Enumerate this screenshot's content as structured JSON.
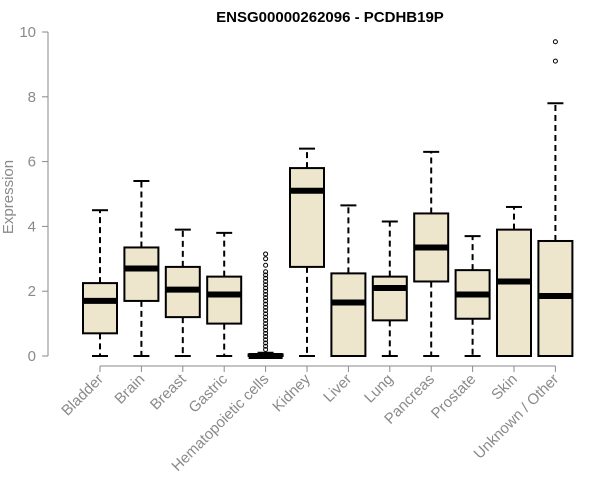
{
  "chart_data": {
    "type": "boxplot",
    "title": "ENSG00000262096 - PCDHB19P",
    "xlabel": "",
    "ylabel": "Expression",
    "ylim": [
      0,
      10
    ],
    "yticks": [
      0,
      2,
      4,
      6,
      8,
      10
    ],
    "categories": [
      "Bladder",
      "Brain",
      "Breast",
      "Gastric",
      "Hematopoietic cells",
      "Kidney",
      "Liver",
      "Lung",
      "Pancreas",
      "Prostate",
      "Skin",
      "Unknown / Other"
    ],
    "boxes": [
      {
        "category": "Bladder",
        "whisker_low": 0,
        "q1": 0.7,
        "median": 1.7,
        "q3": 2.25,
        "whisker_high": 4.5,
        "outliers": []
      },
      {
        "category": "Brain",
        "whisker_low": 0,
        "q1": 1.7,
        "median": 2.7,
        "q3": 3.35,
        "whisker_high": 5.4,
        "outliers": []
      },
      {
        "category": "Breast",
        "whisker_low": 0,
        "q1": 1.2,
        "median": 2.05,
        "q3": 2.75,
        "whisker_high": 3.9,
        "outliers": []
      },
      {
        "category": "Gastric",
        "whisker_low": 0,
        "q1": 1.0,
        "median": 1.9,
        "q3": 2.45,
        "whisker_high": 3.8,
        "outliers": []
      },
      {
        "category": "Hematopoietic cells",
        "whisker_low": 0,
        "q1": 0,
        "median": 0,
        "q3": 0.05,
        "whisker_high": 0.1,
        "outliers": [
          0.2,
          0.3,
          0.4,
          0.5,
          0.6,
          0.7,
          0.8,
          0.9,
          1.0,
          1.1,
          1.2,
          1.3,
          1.4,
          1.5,
          1.6,
          1.7,
          1.8,
          1.9,
          2.0,
          2.1,
          2.2,
          2.3,
          2.4,
          2.5,
          2.6,
          2.8,
          3.0,
          3.15
        ]
      },
      {
        "category": "Kidney",
        "whisker_low": 0,
        "q1": 2.75,
        "median": 5.1,
        "q3": 5.8,
        "whisker_high": 6.4,
        "outliers": []
      },
      {
        "category": "Liver",
        "whisker_low": 0,
        "q1": 0,
        "median": 1.65,
        "q3": 2.55,
        "whisker_high": 4.65,
        "outliers": []
      },
      {
        "category": "Lung",
        "whisker_low": 0,
        "q1": 1.1,
        "median": 2.1,
        "q3": 2.45,
        "whisker_high": 4.15,
        "outliers": []
      },
      {
        "category": "Pancreas",
        "whisker_low": 0,
        "q1": 2.3,
        "median": 3.35,
        "q3": 4.4,
        "whisker_high": 6.3,
        "outliers": []
      },
      {
        "category": "Prostate",
        "whisker_low": 0,
        "q1": 1.15,
        "median": 1.9,
        "q3": 2.65,
        "whisker_high": 3.7,
        "outliers": []
      },
      {
        "category": "Skin",
        "whisker_low": 0,
        "q1": 0,
        "median": 2.3,
        "q3": 3.9,
        "whisker_high": 4.6,
        "outliers": []
      },
      {
        "category": "Unknown / Other",
        "whisker_low": 0,
        "q1": 0,
        "median": 1.85,
        "q3": 3.55,
        "whisker_high": 7.8,
        "outliers": [
          9.1,
          9.7
        ]
      }
    ],
    "box_fill": "#ede6cc",
    "box_stroke": "#000000",
    "axis_color": "#8a8a8a",
    "grid": false
  }
}
